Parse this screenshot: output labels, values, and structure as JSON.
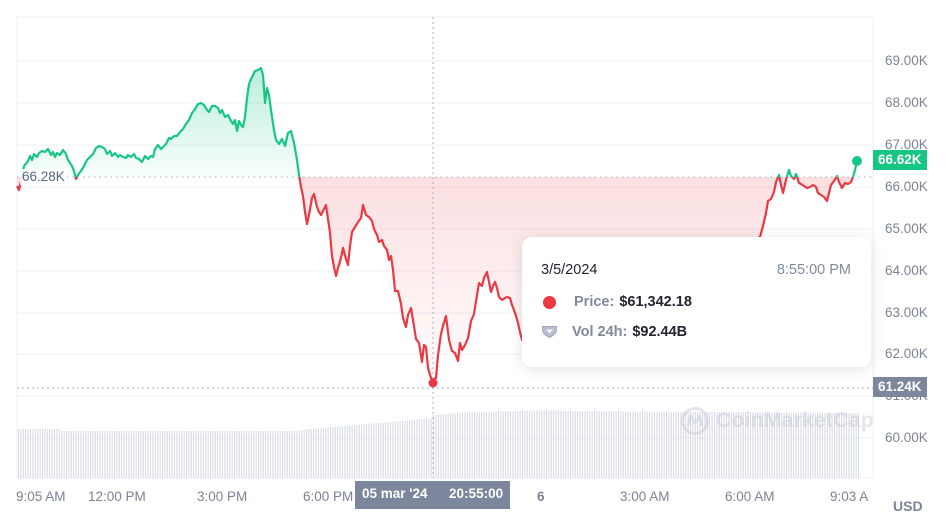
{
  "chart_data": {
    "type": "line",
    "title": "",
    "xlabel": "",
    "ylabel": "USD",
    "currency_label": "USD",
    "y_ticks": [
      "60.00K",
      "61.00K",
      "62.00K",
      "63.00K",
      "64.00K",
      "65.00K",
      "66.00K",
      "67.00K",
      "68.00K",
      "69.00K"
    ],
    "x_ticks": [
      "9:05 AM",
      "12:00 PM",
      "3:00 PM",
      "6:00 PM",
      "6",
      "3:00 AM",
      "6:00 AM",
      "9:03 A"
    ],
    "ylim": [
      59.5,
      70.0
    ],
    "grid": "horizontal",
    "baseline_value": "66.28K",
    "current_value": "66.62K",
    "crosshair_value": "61.24K",
    "crosshair_x_label": {
      "date": "05 mar '24",
      "time": "20:55:00"
    },
    "series": [
      {
        "name": "Price (K USD)",
        "x": [
          "9:05 AM",
          "10:00 AM",
          "11:00 AM",
          "12:00 PM",
          "1:00 PM",
          "2:00 PM",
          "3:00 PM",
          "4:00 PM",
          "4:30 PM",
          "5:00 PM",
          "5:30 PM",
          "6:00 PM",
          "7:00 PM",
          "8:00 PM",
          "8:55 PM",
          "10:00 PM",
          "11:00 PM",
          "12:00 AM",
          "1:00 AM",
          "2:00 AM",
          "3:00 AM",
          "4:00 AM",
          "5:00 AM",
          "6:00 AM",
          "7:00 AM",
          "8:00 AM",
          "9:03 AM"
        ],
        "values": [
          66.1,
          66.55,
          66.45,
          66.5,
          66.7,
          66.75,
          67.7,
          67.2,
          68.9,
          67.8,
          67.0,
          66.2,
          64.8,
          64.3,
          61.34,
          62.6,
          63.7,
          63.4,
          62.7,
          63.0,
          63.9,
          64.2,
          63.8,
          64.5,
          66.1,
          66.2,
          66.62
        ]
      },
      {
        "name": "Vol 24h",
        "description": "Volume bars along bottom, gradually rising after 8:55 PM",
        "values": []
      }
    ]
  },
  "tooltip": {
    "date": "3/5/2024",
    "time": "8:55:00 PM",
    "price_label": "Price:",
    "price_value": "$61,342.18",
    "vol_label": "Vol 24h:",
    "vol_value": "$92.44B"
  },
  "axis": {
    "y_labels": [
      "69.00K",
      "68.00K",
      "67.00K",
      "66.00K",
      "65.00K",
      "64.00K",
      "63.00K",
      "62.00K",
      "61.00K",
      "60.00K"
    ],
    "x_labels": [
      "9:05 AM",
      "12:00 PM",
      "3:00 PM",
      "6:00 PM",
      "6",
      "3:00 AM",
      "6:00 AM",
      "9:03 A"
    ],
    "currency": "USD"
  },
  "badges": {
    "current_price": "66.62K",
    "crosshair_price": "61.24K",
    "crosshair_date": "05 mar '24",
    "crosshair_time": "20:55:00",
    "baseline": "66.28K"
  },
  "watermark": "CoinMarketCap",
  "colors": {
    "up": "#16c784",
    "down": "#ea3943",
    "badge_gray": "#7c869c",
    "axis_text": "#7b8394"
  }
}
